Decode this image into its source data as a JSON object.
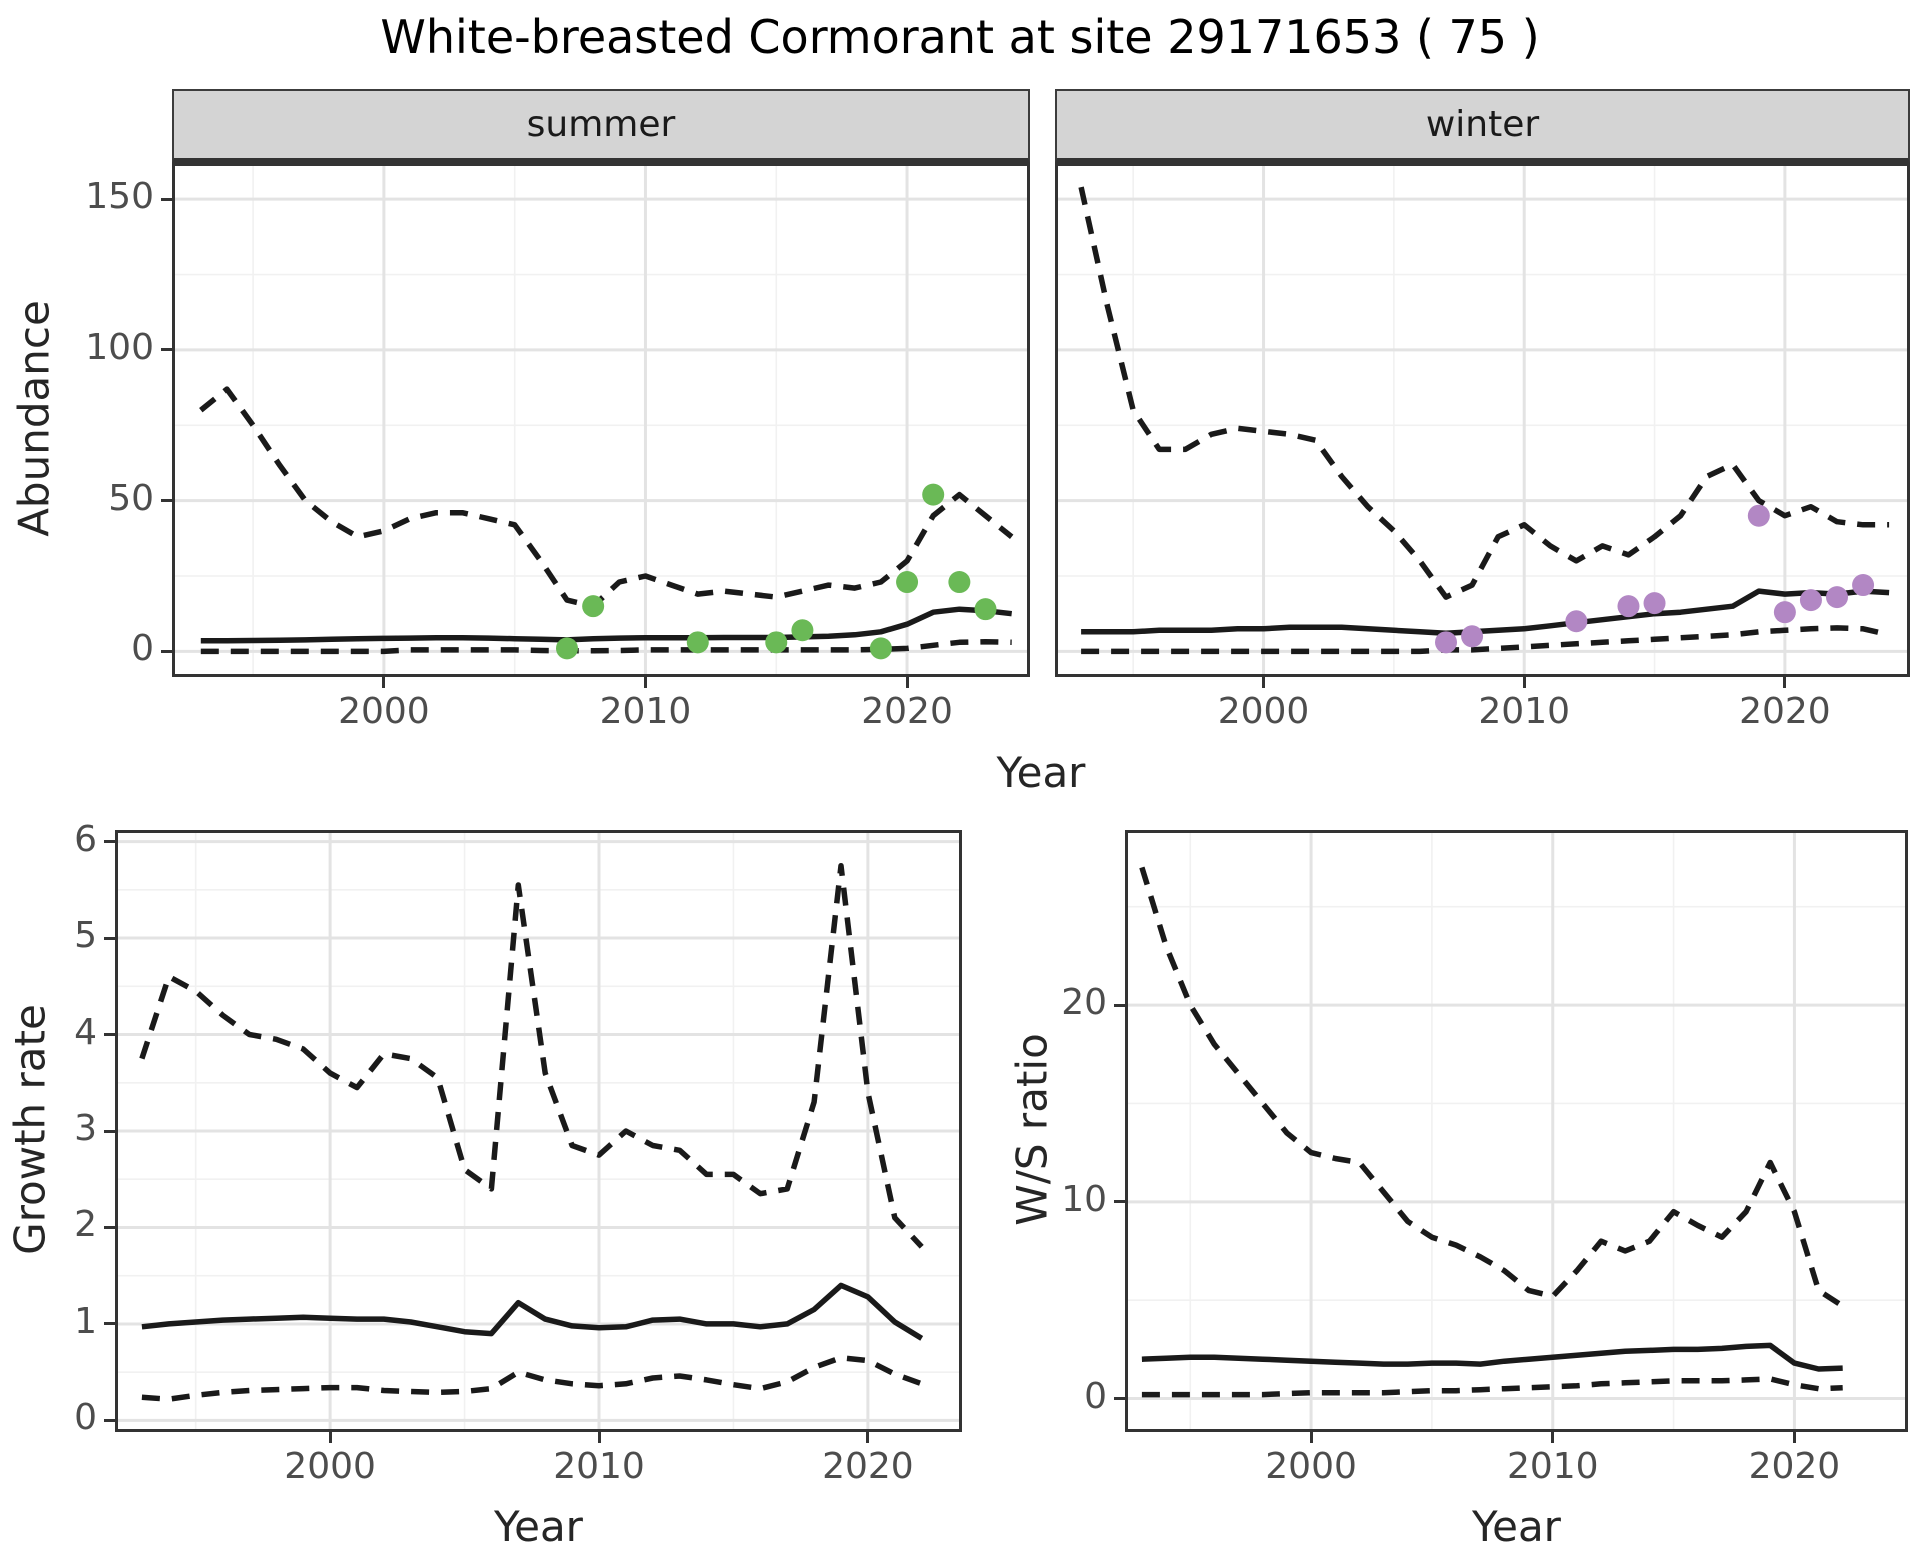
{
  "title": "White-breasted Cormorant at site 29171653 ( 75 )",
  "labels": {
    "abundance": "Abundance",
    "growth_rate": "Growth rate",
    "ws_ratio": "W/S ratio",
    "year": "Year"
  },
  "colors": {
    "summer_point": "#6ab956",
    "winter_point": "#b287c4",
    "line": "#1a1a1a",
    "grid_major": "#e3e3e3",
    "grid_minor": "#f1f1f1",
    "panel_border": "#333333",
    "strip_bg": "#d4d4d4",
    "axis_text": "#4d4d4d"
  },
  "chart_data": [
    {
      "id": "summer",
      "type": "line",
      "facet_label": "summer",
      "x_axis_label": "Year",
      "y_axis_label": "Abundance",
      "x_domain": [
        1991.9,
        2024.7
      ],
      "y_domain": [
        -8.5,
        162
      ],
      "x_ticks": [
        2000,
        2010,
        2020
      ],
      "y_ticks": [
        0,
        50,
        100,
        150
      ],
      "grid": true,
      "legend": "none",
      "x": [
        1993,
        1994,
        1995,
        1996,
        1997,
        1998,
        1999,
        2000,
        2001,
        2002,
        2003,
        2004,
        2005,
        2006,
        2007,
        2008,
        2009,
        2010,
        2011,
        2012,
        2013,
        2014,
        2015,
        2016,
        2017,
        2018,
        2019,
        2020,
        2021,
        2022,
        2023,
        2024
      ],
      "series": [
        {
          "name": "upper_95ci",
          "style": "dashed",
          "values": [
            80,
            87,
            75,
            62,
            50,
            43,
            38,
            40,
            44,
            46,
            46,
            44,
            42,
            30,
            17,
            15,
            23,
            25,
            22,
            19,
            20,
            19,
            18,
            20,
            22,
            21,
            23,
            30,
            45,
            52,
            45,
            38
          ]
        },
        {
          "name": "median",
          "style": "solid",
          "values": [
            3.5,
            3.5,
            3.6,
            3.7,
            3.8,
            4,
            4.2,
            4.3,
            4.4,
            4.5,
            4.5,
            4.4,
            4.2,
            4,
            3.8,
            4.2,
            4.4,
            4.5,
            4.5,
            4.5,
            4.6,
            4.6,
            4.6,
            4.8,
            5,
            5.5,
            6.5,
            9,
            13,
            14,
            13.5,
            12.5
          ]
        },
        {
          "name": "lower_95ci",
          "style": "dashed",
          "values": [
            0,
            0,
            0,
            0,
            0,
            0,
            0,
            0,
            0.5,
            0.5,
            0.5,
            0.5,
            0.5,
            0.3,
            0.2,
            0.2,
            0.3,
            0.5,
            0.5,
            0.5,
            0.5,
            0.5,
            0.5,
            0.5,
            0.5,
            0.5,
            0.7,
            1,
            2,
            3,
            3.2,
            3
          ]
        }
      ],
      "points": {
        "name": "observed_counts",
        "color": "#6ab956",
        "data": [
          [
            2007,
            1
          ],
          [
            2008,
            15
          ],
          [
            2012,
            3
          ],
          [
            2015,
            3
          ],
          [
            2016,
            7
          ],
          [
            2019,
            1
          ],
          [
            2020,
            23
          ],
          [
            2021,
            52
          ],
          [
            2022,
            23
          ],
          [
            2023,
            14
          ]
        ]
      }
    },
    {
      "id": "winter",
      "type": "line",
      "facet_label": "winter",
      "x_axis_label": "Year",
      "y_axis_label": "Abundance",
      "x_domain": [
        1992.0,
        2024.8
      ],
      "y_domain": [
        -8.5,
        162
      ],
      "x_ticks": [
        2000,
        2010,
        2020
      ],
      "y_ticks": [
        0,
        50,
        100,
        150
      ],
      "grid": true,
      "legend": "none",
      "x": [
        1993,
        1994,
        1995,
        1996,
        1997,
        1998,
        1999,
        2000,
        2001,
        2002,
        2003,
        2004,
        2005,
        2006,
        2007,
        2008,
        2009,
        2010,
        2011,
        2012,
        2013,
        2014,
        2015,
        2016,
        2017,
        2018,
        2019,
        2020,
        2021,
        2022,
        2023,
        2024
      ],
      "series": [
        {
          "name": "upper_95ci",
          "style": "dashed",
          "values": [
            154,
            115,
            80,
            67,
            67,
            72,
            74,
            73,
            72,
            70,
            58,
            48,
            40,
            30,
            18,
            22,
            38,
            42,
            35,
            30,
            35,
            32,
            38,
            45,
            58,
            62,
            50,
            45,
            48,
            43,
            42,
            42
          ]
        },
        {
          "name": "median",
          "style": "solid",
          "values": [
            6.5,
            6.5,
            6.5,
            7,
            7,
            7,
            7.5,
            7.5,
            8,
            8,
            8,
            7.5,
            7,
            6.5,
            6,
            6.5,
            7,
            7.5,
            8.5,
            9.5,
            10.5,
            11.5,
            12.5,
            13,
            14,
            15,
            20,
            19,
            19.5,
            19,
            20,
            19.5
          ]
        },
        {
          "name": "lower_95ci",
          "style": "dashed",
          "values": [
            0,
            0,
            0,
            0,
            0,
            0,
            0,
            0,
            0,
            0,
            0,
            0,
            0,
            0,
            0.5,
            0.5,
            1,
            1.5,
            2,
            2.5,
            3,
            3.5,
            4,
            4.5,
            5,
            5.5,
            6.5,
            7,
            7.5,
            7.8,
            7.5,
            5.5
          ]
        }
      ],
      "points": {
        "name": "observed_counts",
        "color": "#b287c4",
        "data": [
          [
            2007,
            3
          ],
          [
            2008,
            5
          ],
          [
            2012,
            10
          ],
          [
            2014,
            15
          ],
          [
            2015,
            16
          ],
          [
            2019,
            45
          ],
          [
            2020,
            13
          ],
          [
            2021,
            17
          ],
          [
            2022,
            18
          ],
          [
            2023,
            22
          ]
        ]
      }
    },
    {
      "id": "growth",
      "type": "line",
      "facet_label": "",
      "x_axis_label": "Year",
      "y_axis_label": "Growth rate",
      "x_domain": [
        1992.0,
        2023.5
      ],
      "y_domain": [
        -0.12,
        6.12
      ],
      "x_ticks": [
        2000,
        2010,
        2020
      ],
      "y_ticks": [
        0,
        1,
        2,
        3,
        4,
        5,
        6
      ],
      "grid": true,
      "legend": "none",
      "x": [
        1993,
        1994,
        1995,
        1996,
        1997,
        1998,
        1999,
        2000,
        2001,
        2002,
        2003,
        2004,
        2005,
        2006,
        2007,
        2008,
        2009,
        2010,
        2011,
        2012,
        2013,
        2014,
        2015,
        2016,
        2017,
        2018,
        2019,
        2020,
        2021,
        2022
      ],
      "series": [
        {
          "name": "upper_95ci",
          "style": "dashed",
          "values": [
            3.75,
            4.6,
            4.45,
            4.2,
            4.0,
            3.95,
            3.85,
            3.6,
            3.45,
            3.8,
            3.75,
            3.55,
            2.6,
            2.4,
            5.55,
            3.6,
            2.85,
            2.75,
            3.0,
            2.85,
            2.8,
            2.55,
            2.55,
            2.35,
            2.4,
            3.3,
            5.75,
            3.4,
            2.1,
            1.8
          ]
        },
        {
          "name": "median",
          "style": "solid",
          "values": [
            0.97,
            1.0,
            1.02,
            1.04,
            1.05,
            1.06,
            1.07,
            1.06,
            1.05,
            1.05,
            1.02,
            0.97,
            0.92,
            0.9,
            1.22,
            1.05,
            0.98,
            0.96,
            0.97,
            1.04,
            1.05,
            1.0,
            1.0,
            0.97,
            1.0,
            1.15,
            1.4,
            1.28,
            1.02,
            0.85
          ]
        },
        {
          "name": "lower_95ci",
          "style": "dashed",
          "values": [
            0.24,
            0.22,
            0.26,
            0.29,
            0.31,
            0.32,
            0.33,
            0.34,
            0.34,
            0.31,
            0.3,
            0.29,
            0.3,
            0.33,
            0.5,
            0.42,
            0.38,
            0.36,
            0.38,
            0.44,
            0.46,
            0.42,
            0.37,
            0.33,
            0.4,
            0.55,
            0.65,
            0.62,
            0.48,
            0.38
          ]
        }
      ],
      "points": null
    },
    {
      "id": "ws",
      "type": "line",
      "facet_label": "",
      "x_axis_label": "Year",
      "y_axis_label": "W/S ratio",
      "x_domain": [
        1992.3,
        2024.7
      ],
      "y_domain": [
        -1.7,
        28.9
      ],
      "x_ticks": [
        2000,
        2010,
        2020
      ],
      "y_ticks": [
        0,
        10,
        20
      ],
      "grid": true,
      "legend": "none",
      "x": [
        1993,
        1994,
        1995,
        1996,
        1997,
        1998,
        1999,
        2000,
        2001,
        2002,
        2003,
        2004,
        2005,
        2006,
        2007,
        2008,
        2009,
        2010,
        2011,
        2012,
        2013,
        2014,
        2015,
        2016,
        2017,
        2018,
        2019,
        2020,
        2021,
        2022
      ],
      "series": [
        {
          "name": "upper_95ci",
          "style": "dashed",
          "values": [
            27,
            23,
            20,
            18,
            16.5,
            15,
            13.5,
            12.5,
            12.2,
            12,
            10.5,
            9,
            8.2,
            7.8,
            7.2,
            6.5,
            5.5,
            5.2,
            6.5,
            8,
            7.5,
            8,
            9.5,
            8.8,
            8.2,
            9.5,
            12,
            9.5,
            5.5,
            4.7
          ]
        },
        {
          "name": "median",
          "style": "solid",
          "values": [
            2.0,
            2.05,
            2.1,
            2.1,
            2.05,
            2.0,
            1.95,
            1.9,
            1.85,
            1.8,
            1.75,
            1.75,
            1.8,
            1.8,
            1.75,
            1.9,
            2.0,
            2.1,
            2.2,
            2.3,
            2.4,
            2.45,
            2.5,
            2.5,
            2.55,
            2.65,
            2.7,
            1.8,
            1.5,
            1.55
          ]
        },
        {
          "name": "lower_95ci",
          "style": "dashed",
          "values": [
            0.2,
            0.2,
            0.2,
            0.2,
            0.2,
            0.2,
            0.25,
            0.3,
            0.3,
            0.3,
            0.3,
            0.35,
            0.4,
            0.4,
            0.45,
            0.5,
            0.55,
            0.6,
            0.65,
            0.75,
            0.8,
            0.85,
            0.9,
            0.9,
            0.9,
            0.95,
            1.0,
            0.7,
            0.5,
            0.55
          ]
        }
      ],
      "points": null
    }
  ]
}
